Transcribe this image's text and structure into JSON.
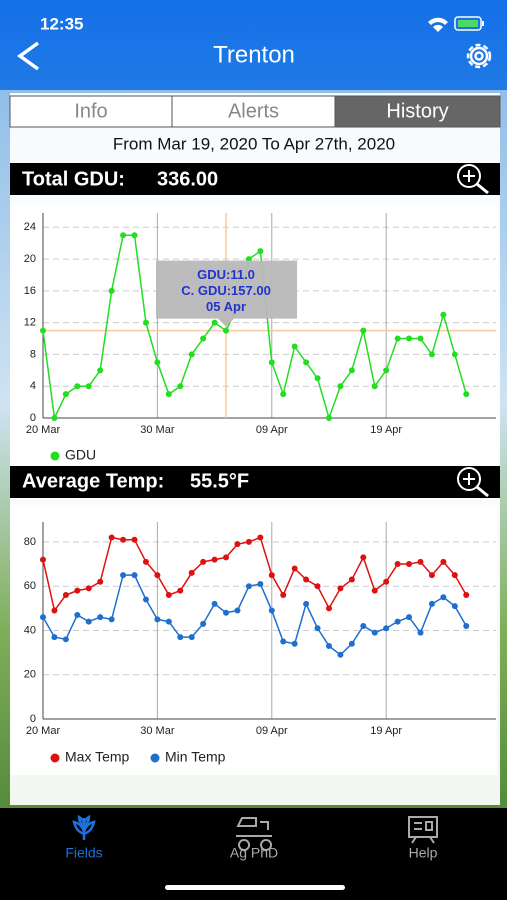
{
  "status_bar": {
    "time": "12:35"
  },
  "nav": {
    "title": "Trenton"
  },
  "tabs": [
    "Info",
    "Alerts",
    "History"
  ],
  "selected_tab": 2,
  "date_range": "From Mar 19, 2020 To Apr 27th, 2020",
  "summaries": [
    {
      "label": "Total GDU:",
      "value": "336.00"
    },
    {
      "label": "Average Temp:",
      "value": "55.5°F"
    }
  ],
  "chart_data": [
    {
      "type": "line",
      "x": [
        0,
        1,
        2,
        3,
        4,
        5,
        6,
        7,
        8,
        9,
        10,
        11,
        12,
        13,
        14,
        15,
        16,
        17,
        18,
        19,
        20,
        21,
        22,
        23,
        24,
        25,
        26,
        27,
        28,
        29,
        30,
        31,
        32,
        33,
        34,
        35,
        36,
        37
      ],
      "series": [
        {
          "name": "GDU",
          "color": "#22dd22",
          "values": [
            11,
            0,
            3,
            4,
            4,
            6,
            16,
            23,
            23,
            12,
            7,
            3,
            4,
            8,
            10,
            12,
            11,
            14,
            20,
            21,
            7,
            3,
            9,
            7,
            5,
            0,
            4,
            6,
            11,
            4,
            6,
            10,
            10,
            10,
            8,
            13,
            8,
            3
          ]
        }
      ],
      "xlim": [
        0,
        39.6
      ],
      "xticks": [
        {
          "value": 0,
          "label": "20 Mar"
        },
        {
          "value": 10,
          "label": "30 Mar"
        },
        {
          "value": 20,
          "label": "09 Apr"
        },
        {
          "value": 30,
          "label": "19 Apr"
        }
      ],
      "ylim": [
        0,
        25.8
      ],
      "yticks": [
        0,
        4,
        8,
        12,
        16,
        20,
        24
      ],
      "grid": true,
      "legend": "bottom-left",
      "tooltip": {
        "x": 16,
        "y": 11,
        "lines": [
          "GDU:11.0",
          "C. GDU:157.00",
          "05 Apr"
        ]
      }
    },
    {
      "type": "line",
      "x": [
        0,
        1,
        2,
        3,
        4,
        5,
        6,
        7,
        8,
        9,
        10,
        11,
        12,
        13,
        14,
        15,
        16,
        17,
        18,
        19,
        20,
        21,
        22,
        23,
        24,
        25,
        26,
        27,
        28,
        29,
        30,
        31,
        32,
        33,
        34,
        35,
        36,
        37
      ],
      "series": [
        {
          "name": "Max Temp",
          "color": "#dd1111",
          "values": [
            72,
            49,
            56,
            58,
            59,
            62,
            82,
            81,
            81,
            71,
            65,
            56,
            58,
            66,
            71,
            72,
            73,
            79,
            80,
            82,
            65,
            56,
            68,
            63,
            60,
            50,
            59,
            63,
            73,
            58,
            62,
            70,
            70,
            71,
            65,
            71,
            65,
            56
          ]
        },
        {
          "name": "Min Temp",
          "color": "#1f6fcf",
          "values": [
            46,
            37,
            36,
            47,
            44,
            46,
            45,
            65,
            65,
            54,
            45,
            44,
            37,
            37,
            43,
            52,
            48,
            49,
            60,
            61,
            49,
            35,
            34,
            52,
            41,
            33,
            29,
            34,
            42,
            39,
            41,
            44,
            46,
            39,
            52,
            55,
            51,
            42
          ]
        }
      ],
      "xlim": [
        0,
        39.6
      ],
      "xticks": [
        {
          "value": 0,
          "label": "20 Mar"
        },
        {
          "value": 10,
          "label": "30 Mar"
        },
        {
          "value": 20,
          "label": "09 Apr"
        },
        {
          "value": 30,
          "label": "19 Apr"
        }
      ],
      "ylim": [
        0,
        89
      ],
      "yticks": [
        0,
        20,
        40,
        60,
        80
      ],
      "grid": true,
      "legend": "bottom-left"
    }
  ],
  "tabbar": [
    "Fields",
    "Ag PhD",
    "Help"
  ],
  "selected_tabbar": 0
}
